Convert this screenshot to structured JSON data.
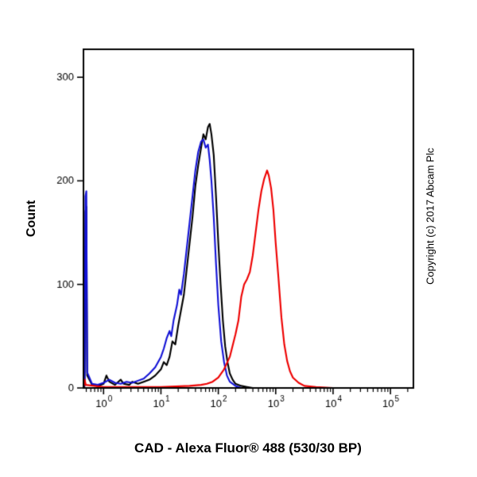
{
  "labels": {
    "x_axis": "CAD - Alexa Fluor® 488 (530/30 BP)",
    "y_axis": "Count",
    "copyright": "Copyright (c) 2017 Abcam Plc"
  },
  "chart_data": {
    "type": "line",
    "subtype": "flow-cytometry-histogram",
    "title": "",
    "xlabel": "CAD - Alexa Fluor® 488 (530/30 BP)",
    "ylabel": "Count",
    "x_scale": "log10",
    "x_log_range": [
      -0.35,
      5.4
    ],
    "x_major_tick_exponents": [
      0,
      1,
      2,
      3,
      4,
      5
    ],
    "ylim": [
      0,
      327
    ],
    "y_ticks": [
      0,
      100,
      200,
      300
    ],
    "grid": false,
    "legend": "none",
    "axis_color": "#000000",
    "background": "#ffffff",
    "series": [
      {
        "name": "black-curve",
        "color": "#000000",
        "points": [
          [
            -0.35,
            0
          ],
          [
            -0.33,
            2
          ],
          [
            -0.315,
            170
          ],
          [
            -0.3,
            175
          ],
          [
            -0.285,
            12
          ],
          [
            -0.2,
            3
          ],
          [
            -0.1,
            2
          ],
          [
            0,
            4
          ],
          [
            0.05,
            12
          ],
          [
            0.1,
            6
          ],
          [
            0.2,
            3
          ],
          [
            0.3,
            8
          ],
          [
            0.35,
            4
          ],
          [
            0.45,
            3
          ],
          [
            0.5,
            6
          ],
          [
            0.6,
            4
          ],
          [
            0.7,
            6
          ],
          [
            0.8,
            8
          ],
          [
            0.9,
            12
          ],
          [
            1.0,
            18
          ],
          [
            1.05,
            25
          ],
          [
            1.1,
            22
          ],
          [
            1.15,
            30
          ],
          [
            1.2,
            45
          ],
          [
            1.25,
            42
          ],
          [
            1.3,
            60
          ],
          [
            1.35,
            75
          ],
          [
            1.4,
            90
          ],
          [
            1.45,
            115
          ],
          [
            1.5,
            140
          ],
          [
            1.55,
            165
          ],
          [
            1.6,
            195
          ],
          [
            1.65,
            215
          ],
          [
            1.7,
            232
          ],
          [
            1.74,
            245
          ],
          [
            1.78,
            240
          ],
          [
            1.82,
            252
          ],
          [
            1.85,
            255
          ],
          [
            1.88,
            245
          ],
          [
            1.92,
            225
          ],
          [
            1.96,
            185
          ],
          [
            2.0,
            140
          ],
          [
            2.04,
            100
          ],
          [
            2.08,
            65
          ],
          [
            2.12,
            40
          ],
          [
            2.16,
            25
          ],
          [
            2.2,
            14
          ],
          [
            2.25,
            8
          ],
          [
            2.3,
            4
          ],
          [
            2.4,
            2
          ],
          [
            2.5,
            1
          ],
          [
            2.6,
            0
          ],
          [
            5.4,
            0
          ]
        ]
      },
      {
        "name": "blue-curve",
        "color": "#1212d6",
        "points": [
          [
            -0.35,
            0
          ],
          [
            -0.33,
            5
          ],
          [
            -0.315,
            185
          ],
          [
            -0.3,
            190
          ],
          [
            -0.285,
            15
          ],
          [
            -0.2,
            4
          ],
          [
            -0.1,
            3
          ],
          [
            0,
            5
          ],
          [
            0.1,
            8
          ],
          [
            0.2,
            5
          ],
          [
            0.3,
            4
          ],
          [
            0.4,
            6
          ],
          [
            0.5,
            5
          ],
          [
            0.6,
            7
          ],
          [
            0.7,
            9
          ],
          [
            0.8,
            14
          ],
          [
            0.9,
            20
          ],
          [
            1.0,
            30
          ],
          [
            1.05,
            38
          ],
          [
            1.1,
            48
          ],
          [
            1.15,
            55
          ],
          [
            1.18,
            50
          ],
          [
            1.22,
            65
          ],
          [
            1.28,
            80
          ],
          [
            1.32,
            95
          ],
          [
            1.35,
            90
          ],
          [
            1.4,
            110
          ],
          [
            1.45,
            135
          ],
          [
            1.5,
            160
          ],
          [
            1.55,
            185
          ],
          [
            1.6,
            210
          ],
          [
            1.65,
            228
          ],
          [
            1.7,
            238
          ],
          [
            1.74,
            240
          ],
          [
            1.78,
            232
          ],
          [
            1.82,
            235
          ],
          [
            1.85,
            220
          ],
          [
            1.88,
            200
          ],
          [
            1.92,
            165
          ],
          [
            1.96,
            120
          ],
          [
            2.0,
            80
          ],
          [
            2.05,
            45
          ],
          [
            2.1,
            25
          ],
          [
            2.15,
            12
          ],
          [
            2.2,
            6
          ],
          [
            2.3,
            2
          ],
          [
            2.4,
            0
          ],
          [
            5.4,
            0
          ]
        ]
      },
      {
        "name": "red-curve",
        "color": "#ee0000",
        "points": [
          [
            -0.35,
            0
          ],
          [
            -0.33,
            8
          ],
          [
            -0.31,
            3
          ],
          [
            0,
            1
          ],
          [
            0.5,
            1
          ],
          [
            1.0,
            1
          ],
          [
            1.5,
            2
          ],
          [
            1.7,
            3
          ],
          [
            1.8,
            4
          ],
          [
            1.9,
            6
          ],
          [
            2.0,
            10
          ],
          [
            2.1,
            18
          ],
          [
            2.2,
            30
          ],
          [
            2.3,
            52
          ],
          [
            2.35,
            65
          ],
          [
            2.4,
            88
          ],
          [
            2.45,
            100
          ],
          [
            2.5,
            105
          ],
          [
            2.55,
            112
          ],
          [
            2.6,
            128
          ],
          [
            2.65,
            150
          ],
          [
            2.7,
            172
          ],
          [
            2.75,
            190
          ],
          [
            2.8,
            202
          ],
          [
            2.85,
            210
          ],
          [
            2.88,
            205
          ],
          [
            2.92,
            193
          ],
          [
            2.96,
            172
          ],
          [
            3.0,
            140
          ],
          [
            3.05,
            105
          ],
          [
            3.1,
            68
          ],
          [
            3.15,
            42
          ],
          [
            3.2,
            26
          ],
          [
            3.25,
            16
          ],
          [
            3.3,
            10
          ],
          [
            3.4,
            5
          ],
          [
            3.5,
            2
          ],
          [
            3.7,
            1
          ],
          [
            4.0,
            0
          ],
          [
            5.4,
            0
          ]
        ]
      }
    ]
  }
}
